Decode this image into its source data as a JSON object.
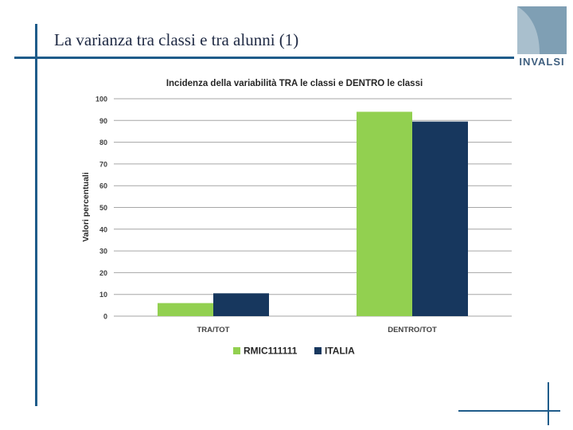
{
  "slide": {
    "title": "La varianza tra classi e tra alunni (1)",
    "logo_text": "INVALSI"
  },
  "colors": {
    "rule": "#1f5c8a",
    "logo_square": "#7f9fb4",
    "series_green": "#92d050",
    "series_navy": "#17375e",
    "gridline": "#a6a6a6"
  },
  "chart_data": {
    "type": "bar",
    "title": "Incidenza della variabilità TRA le classi e DENTRO le classi",
    "xlabel": "",
    "ylabel": "Valori percentuali",
    "categories": [
      "TRA/TOT",
      "DENTRO/TOT"
    ],
    "series": [
      {
        "name": "RMIC111111",
        "values": [
          6,
          94
        ],
        "color": "#92d050"
      },
      {
        "name": "ITALIA",
        "values": [
          10.5,
          89.5
        ],
        "color": "#17375e"
      }
    ],
    "ylim": [
      0,
      100
    ],
    "yticks": [
      "0",
      "10",
      "20",
      "30",
      "40",
      "50",
      "60",
      "70",
      "80",
      "90",
      "100"
    ],
    "grid": true,
    "legend": "bottom"
  }
}
